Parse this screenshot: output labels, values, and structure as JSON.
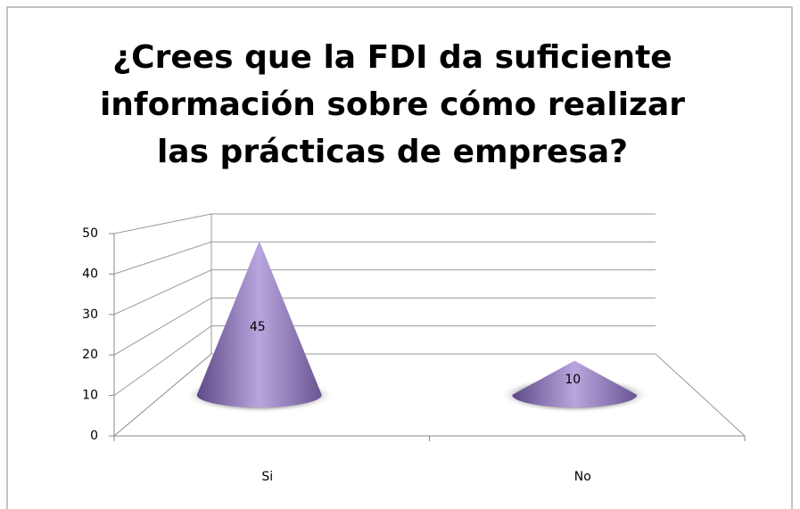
{
  "chart_data": {
    "type": "cone",
    "title": "¿Crees que la FDI da suficiente información sobre cómo realizar las prácticas de empresa?",
    "categories": [
      "Si",
      "No"
    ],
    "values": [
      45,
      10
    ],
    "color": "#9a82c6",
    "ylim": [
      0,
      50
    ],
    "yticks": [
      0,
      10,
      20,
      30,
      40,
      50
    ],
    "grid": true
  }
}
